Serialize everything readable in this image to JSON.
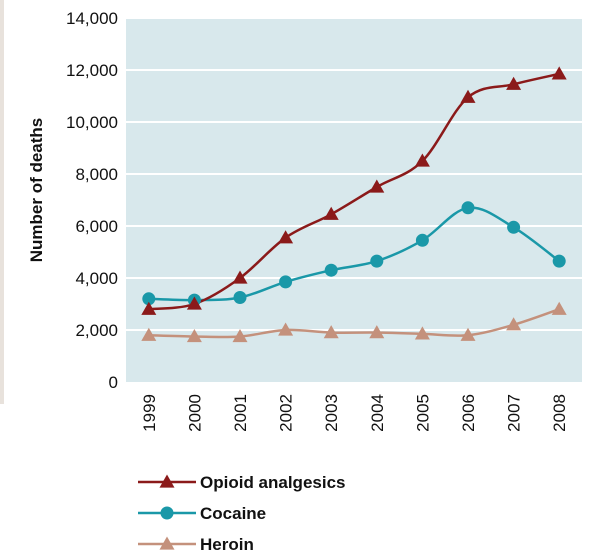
{
  "chart_data": {
    "type": "line",
    "title": "",
    "xlabel": "",
    "ylabel": "Number of deaths",
    "x": [
      "1999",
      "2000",
      "2001",
      "2002",
      "2003",
      "2004",
      "2005",
      "2006",
      "2007",
      "2008"
    ],
    "ylim": [
      0,
      14000
    ],
    "yticks": [
      0,
      2000,
      4000,
      6000,
      8000,
      10000,
      12000,
      14000
    ],
    "ytick_labels": [
      "0",
      "2,000",
      "4,000",
      "6,000",
      "8,000",
      "10,000",
      "12,000",
      "14,000"
    ],
    "grid": true,
    "legend_position": "bottom-left",
    "plot_background": "#d8e8ec",
    "series": [
      {
        "name": "Opioid analgesics",
        "marker": "triangle",
        "color": "#8b1a1a",
        "values": [
          2800,
          3000,
          4000,
          5550,
          6450,
          7500,
          8500,
          10950,
          11450,
          11850
        ]
      },
      {
        "name": "Cocaine",
        "marker": "circle",
        "color": "#1a98a8",
        "values": [
          3200,
          3150,
          3250,
          3850,
          4300,
          4650,
          5450,
          6700,
          5950,
          4650
        ]
      },
      {
        "name": "Heroin",
        "marker": "triangle",
        "color": "#c4917c",
        "values": [
          1800,
          1750,
          1750,
          2000,
          1900,
          1900,
          1850,
          1800,
          2200,
          2800
        ]
      }
    ]
  }
}
